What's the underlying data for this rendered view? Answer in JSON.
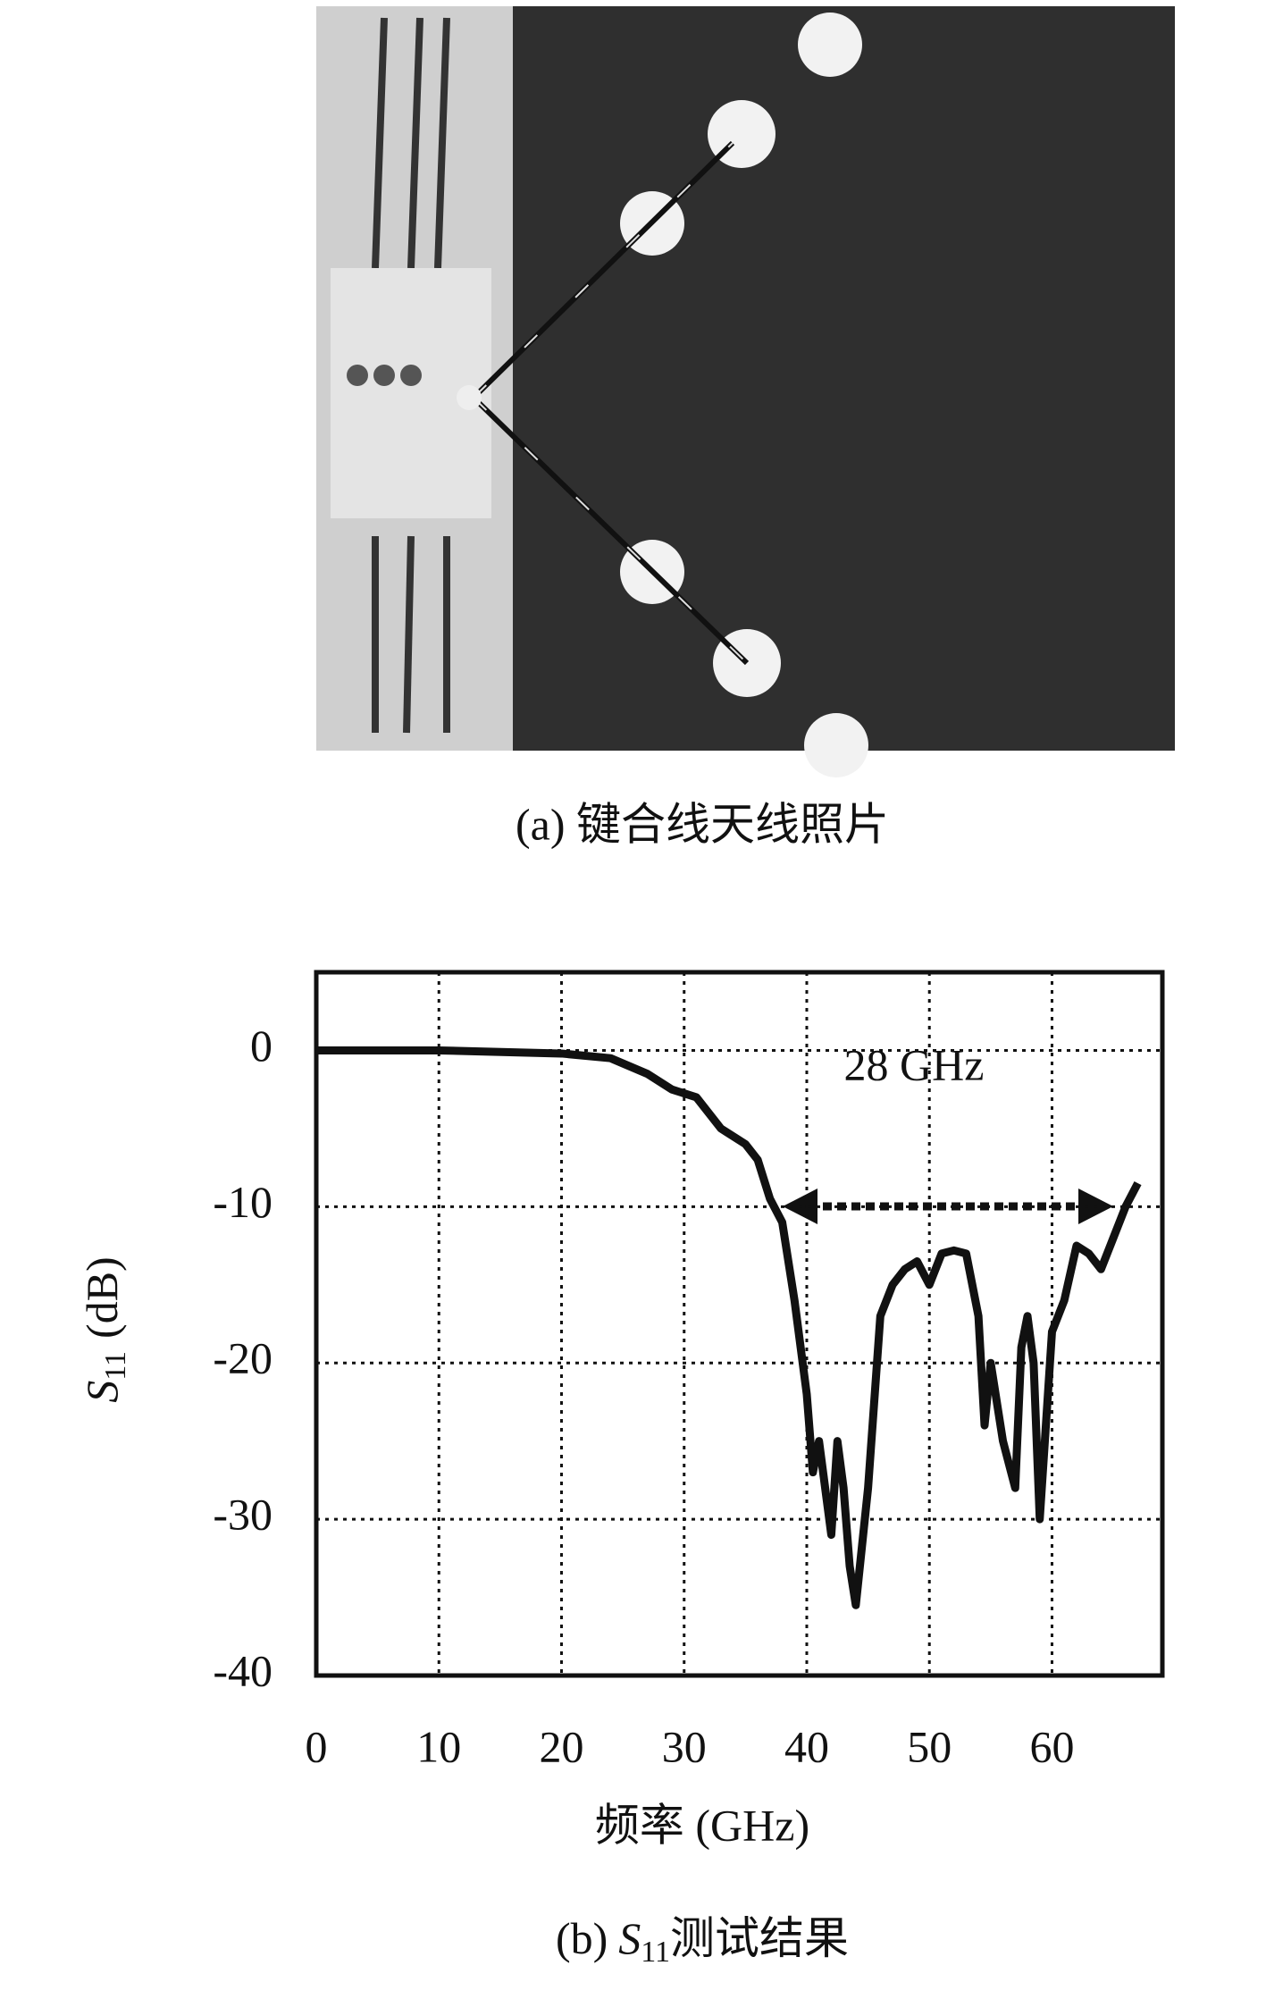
{
  "caption_a": "(a) 键合线天线照片",
  "chart_data": {
    "type": "line",
    "annotation": "28 GHz",
    "x_label": "频率 (GHz)",
    "y_label": {
      "symbol": "S",
      "subscript": "11",
      "unit": "(dB)"
    },
    "caption": {
      "prefix": "(b)",
      "symbol": "S",
      "subscript": "11",
      "text": "测试结果"
    },
    "xlim": [
      0,
      69
    ],
    "ylim": [
      -40,
      5
    ],
    "xticks": [
      0,
      10,
      20,
      30,
      40,
      50,
      60
    ],
    "yticks": [
      0,
      -10,
      -20,
      -30,
      -40
    ],
    "grid": true,
    "series": [
      {
        "color": "#111111",
        "x": [
          0,
          10,
          20,
          24,
          27,
          29,
          31,
          33,
          35,
          36,
          37,
          38,
          39,
          40,
          40.5,
          41,
          41.5,
          42,
          42.5,
          43,
          43.5,
          44,
          45,
          46,
          47,
          48,
          49,
          50,
          51,
          52,
          53,
          54,
          54.5,
          55,
          56,
          57,
          57.5,
          58,
          58.5,
          59,
          60,
          61,
          62,
          63,
          64,
          65,
          66,
          67
        ],
        "values": [
          0,
          0,
          -0.2,
          -0.5,
          -1.5,
          -2.5,
          -3,
          -5,
          -6,
          -7,
          -9.5,
          -11,
          -16,
          -22,
          -27,
          -25,
          -28,
          -31,
          -25,
          -28,
          -33,
          -35.5,
          -28,
          -17,
          -15,
          -14,
          -13.5,
          -15,
          -13,
          -12.8,
          -13,
          -17,
          -24,
          -20,
          -25,
          -28,
          -19,
          -17,
          -20,
          -30,
          -18,
          -16,
          -12.5,
          -13,
          -14,
          -12,
          -10,
          -8.5
        ]
      }
    ]
  }
}
